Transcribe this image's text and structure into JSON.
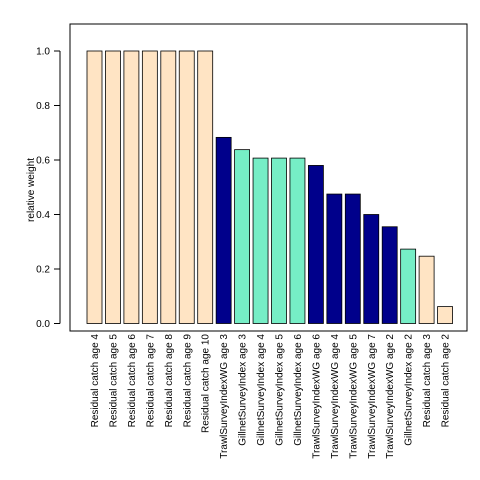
{
  "chart_data": {
    "type": "bar",
    "title": "",
    "xlabel": "",
    "ylabel": "relative weight",
    "ylim": [
      0,
      1.1
    ],
    "yticks": [
      "0.0",
      "0.2",
      "0.4",
      "0.6",
      "0.8",
      "1.0"
    ],
    "ytick_values": [
      0,
      0.2,
      0.4,
      0.6,
      0.8,
      1.0
    ],
    "grid": false,
    "legend": "none",
    "colors": {
      "residual_catch": "#FFE4C4",
      "trawl_survey": "#00008B",
      "gillnet_survey": "#76EEC6"
    },
    "categories": [
      "Residual catch age 4",
      "Residual catch age 5",
      "Residual catch age 6",
      "Residual catch age 7",
      "Residual catch age 8",
      "Residual catch age 9",
      "Residual catch age 10",
      "TrawlSurveyIndexWG age 3",
      "GillnetSurveyIndex age 3",
      "GillnetSurveyIndex age 4",
      "GillnetSurveyIndex age 5",
      "GillnetSurveyIndex age 6",
      "TrawlSurveyIndexWG age 6",
      "TrawlSurveyIndexWG age 4",
      "TrawlSurveyIndexWG age 5",
      "TrawlSurveyIndexWG age 7",
      "TrawlSurveyIndexWG age 2",
      "GillnetSurveyIndex age 2",
      "Residual catch age 3",
      "Residual catch age 2"
    ],
    "values": [
      1.0,
      1.0,
      1.0,
      1.0,
      1.0,
      1.0,
      1.0,
      0.683,
      0.638,
      0.607,
      0.607,
      0.607,
      0.58,
      0.475,
      0.475,
      0.4,
      0.355,
      0.273,
      0.247,
      0.062
    ],
    "groups": [
      "residual_catch",
      "residual_catch",
      "residual_catch",
      "residual_catch",
      "residual_catch",
      "residual_catch",
      "residual_catch",
      "trawl_survey",
      "gillnet_survey",
      "gillnet_survey",
      "gillnet_survey",
      "gillnet_survey",
      "trawl_survey",
      "trawl_survey",
      "trawl_survey",
      "trawl_survey",
      "trawl_survey",
      "gillnet_survey",
      "residual_catch",
      "residual_catch"
    ]
  }
}
